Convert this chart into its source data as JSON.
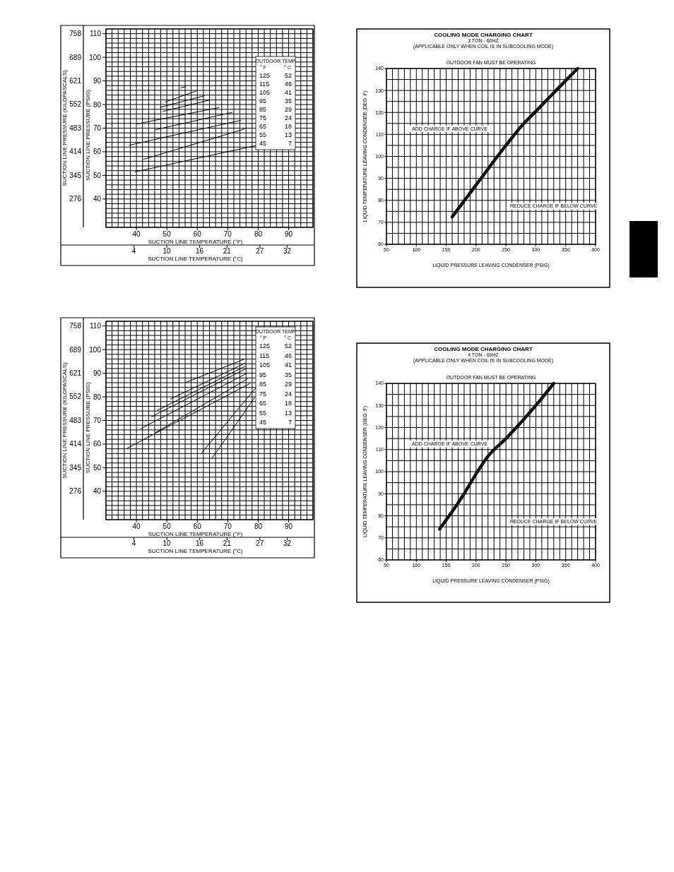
{
  "chart_data": [
    {
      "type": "line",
      "xlabel": "SUCTION LINE TEMPERATURE (°F)",
      "x2label": "SUCTION LINE TEMPERATURE (°C)",
      "ylabel": "SUCTION LINE PRESSURE (PSIG)",
      "y2label": "SUCTION LINE PRESSURE (KILOPASCALS)",
      "xlim": [
        30,
        98
      ],
      "xticks": [
        40,
        50,
        60,
        70,
        80,
        90
      ],
      "x2lim": [
        -1.1,
        36.7
      ],
      "x2ticks": [
        4,
        10,
        16,
        21,
        27,
        32
      ],
      "ylim": [
        28,
        112
      ],
      "yticks": [
        40,
        50,
        60,
        70,
        80,
        90,
        100,
        110
      ],
      "y2lim": [
        193,
        772
      ],
      "y2ticks": [
        276,
        345,
        414,
        483,
        552,
        621,
        689,
        758
      ],
      "grid": true,
      "legend": "top right",
      "legend_title": "OUTDOOR TEMP",
      "annotations": [
        "° F",
        "° C",
        "52",
        "46",
        "41",
        "35",
        "29",
        "24",
        "18",
        "13",
        "7"
      ],
      "series": [
        {
          "name": "125",
          "color": "#000000",
          "x": [
            54.6,
            56.2
          ],
          "values": [
            87.1,
            87.5
          ]
        },
        {
          "name": "115",
          "color": "#000000",
          "x": [
            49.5,
            59.6
          ],
          "values": [
            81.1,
            85.7
          ]
        },
        {
          "name": "105",
          "color": "#000000",
          "x": [
            47.8,
            62.3
          ],
          "values": [
            78.8,
            83.7
          ]
        },
        {
          "name": "95",
          "color": "#000000",
          "x": [
            48.7,
            63.8
          ],
          "values": [
            77.1,
            81.8
          ]
        },
        {
          "name": "85",
          "color": "#000000",
          "x": [
            40.2,
            67.1
          ],
          "values": [
            71.8,
            78.7
          ]
        },
        {
          "name": "75",
          "color": "#000000",
          "x": [
            46.2,
            71.5
          ],
          "values": [
            69.3,
            76.7
          ]
        },
        {
          "name": "65",
          "color": "#000000",
          "x": [
            37.7,
            74.2
          ],
          "values": [
            62.8,
            73.3
          ]
        },
        {
          "name": "55",
          "color": "#000000",
          "x": [
            42.3,
            75.4
          ],
          "values": [
            56.8,
            69.6
          ]
        },
        {
          "name": "45",
          "color": "#000000",
          "x": [
            39.6,
            79.2
          ],
          "values": [
            51.5,
            62.6
          ]
        }
      ]
    },
    {
      "type": "line",
      "xlabel": "SUCTION LINE TEMPERATURE (°F)",
      "x2label": "SUCTION LINE TEMPERATURE (°C)",
      "ylabel": "SUCTION LINE PRESSURE (PSIG)",
      "y2label": "SUCTION LINE PRESSURE (KILOPASCALS)",
      "xlim": [
        30,
        98
      ],
      "xticks": [
        40,
        50,
        60,
        70,
        80,
        90
      ],
      "x2lim": [
        -1.1,
        36.7
      ],
      "x2ticks": [
        4,
        10,
        16,
        21,
        27,
        32
      ],
      "ylim": [
        28,
        112
      ],
      "yticks": [
        40,
        50,
        60,
        70,
        80,
        90,
        100,
        110
      ],
      "y2lim": [
        193,
        772
      ],
      "y2ticks": [
        276,
        345,
        414,
        483,
        552,
        621,
        689,
        758
      ],
      "grid": true,
      "legend": "top right",
      "legend_title": "OUTDOOR TEMP",
      "annotations": [
        "° F",
        "° C",
        "52",
        "46",
        "41",
        "35",
        "29",
        "24",
        "18",
        "13",
        "7"
      ],
      "series": [
        {
          "name": "125",
          "color": "#000000",
          "x": [
            56.2,
            75.2
          ],
          "values": [
            86.1,
            95.8
          ]
        },
        {
          "name": "115",
          "color": "#000000",
          "x": [
            51.2,
            75.8
          ],
          "values": [
            79.1,
            94.3
          ]
        },
        {
          "name": "105",
          "color": "#000000",
          "x": [
            46.9,
            75.8
          ],
          "values": [
            74.3,
            93.0
          ]
        },
        {
          "name": "95",
          "color": "#000000",
          "x": [
            45.0,
            75.8
          ],
          "values": [
            71.6,
            91.8
          ]
        },
        {
          "name": "85",
          "color": "#000000",
          "x": [
            41.5,
            76.2
          ],
          "values": [
            66.6,
            89.9
          ]
        },
        {
          "name": "75",
          "color": "#000000",
          "x": [
            46.2,
            76.5
          ],
          "values": [
            64.8,
            87.6
          ]
        },
        {
          "name": "65",
          "color": "#000000",
          "x": [
            36.9,
            77.2
          ],
          "values": [
            58.2,
            85.6
          ]
        },
        {
          "name": "55",
          "color": "#000000",
          "x": [
            61.2,
            79.2
          ],
          "values": [
            55.9,
            83.8
          ]
        },
        {
          "name": "45",
          "color": "#000000",
          "x": [
            64.8,
            78.8
          ],
          "values": [
            54.0,
            79.6
          ]
        }
      ]
    },
    {
      "type": "line",
      "title": "COOLING MODE CHARGING CHART",
      "subtitle": "3 TON - 60HZ\n(APPLICABLE ONLY WHEN COIL IS IN SUBCOOLING MODE)",
      "xlabel": "LIQUID PRESSURE LEAVING CONDENSER (PSIG)",
      "ylabel": "LIQUID TEMPERATURE LEAVING CONDENSER (DEG. F)",
      "xlim": [
        50,
        400
      ],
      "xticks": [
        50,
        100,
        150,
        200,
        250,
        300,
        350,
        400
      ],
      "ylim": [
        60,
        140
      ],
      "yticks": [
        60,
        70,
        80,
        90,
        100,
        110,
        120,
        130,
        140
      ],
      "grid": true,
      "annotations": [
        "OUTDOOR FAN MUST BE OPERATING",
        "ADD CHARGE IF ABOVE CURVE",
        "REDUCE CHARGE IF BELOW CURVE"
      ],
      "series": [
        {
          "color": "#111111",
          "x": [
            160,
            200,
            250,
            280,
            300,
            350,
            370
          ],
          "values": [
            72.5,
            87,
            105,
            115,
            120.5,
            134.5,
            140
          ]
        }
      ]
    },
    {
      "type": "line",
      "title": "COOLING MODE CHARGING CHART",
      "subtitle": "4 TON - 60HZ\n(APPLICABLE ONLY WHEN COIL IS IN SUBCOOLING MODE)",
      "xlabel": "LIQUID PRESSURE LEAVING CONDENSER (PSIG)",
      "ylabel": "LIQUID TEMPERATURE LEAVING CONDENSER (DEG. F)",
      "xlim": [
        50,
        400
      ],
      "xticks": [
        50,
        100,
        150,
        200,
        250,
        300,
        350,
        400
      ],
      "ylim": [
        60,
        140
      ],
      "yticks": [
        60,
        70,
        80,
        90,
        100,
        110,
        120,
        130,
        140
      ],
      "grid": true,
      "annotations": [
        "OUTDOOR FAN MUST BE OPERATING",
        "ADD CHARGE IF ABOVE CURVE",
        "REDUCE CHARGE IF BELOW CURVE"
      ],
      "series": [
        {
          "color": "#111111",
          "x": [
            139,
            180,
            200,
            220,
            250,
            300,
            330
          ],
          "values": [
            74,
            90,
            99,
            107,
            115,
            130,
            140
          ]
        }
      ]
    }
  ]
}
